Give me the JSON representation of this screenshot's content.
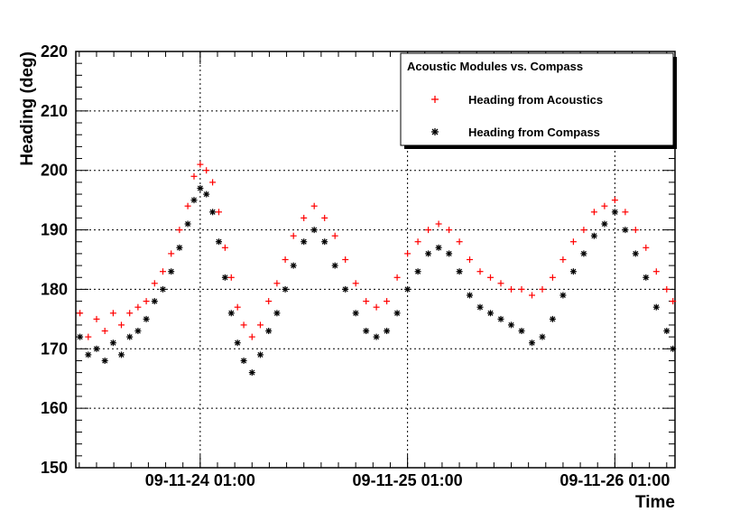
{
  "chart_data": {
    "type": "scatter",
    "title": "",
    "xlabel": "Time",
    "ylabel": "Heading (deg)",
    "ylim": [
      150,
      220
    ],
    "yticks": [
      150,
      160,
      170,
      180,
      190,
      200,
      210,
      220
    ],
    "x_range_days": [
      -0.6,
      2.29
    ],
    "xtick_labels": [
      {
        "label": "09-11-24 01:00",
        "day": 0
      },
      {
        "label": "09-11-25 01:00",
        "day": 1
      },
      {
        "label": "09-11-26 01:00",
        "day": 2
      }
    ],
    "grid": true,
    "legend": {
      "title": "Acoustic Modules vs. Compass",
      "placement": "top-right",
      "entries": [
        "Heading from Acoustics",
        "Heading from Compass"
      ]
    },
    "series": [
      {
        "name": "Heading from Acoustics",
        "marker": "+",
        "color": "#ff0000",
        "points": [
          [
            -0.58,
            176
          ],
          [
            -0.54,
            172
          ],
          [
            -0.5,
            175
          ],
          [
            -0.46,
            173
          ],
          [
            -0.42,
            176
          ],
          [
            -0.38,
            174
          ],
          [
            -0.34,
            176
          ],
          [
            -0.3,
            177
          ],
          [
            -0.26,
            178
          ],
          [
            -0.22,
            181
          ],
          [
            -0.18,
            183
          ],
          [
            -0.14,
            186
          ],
          [
            -0.1,
            190
          ],
          [
            -0.06,
            194
          ],
          [
            -0.03,
            199
          ],
          [
            0,
            201
          ],
          [
            0.03,
            200
          ],
          [
            0.06,
            198
          ],
          [
            0.09,
            193
          ],
          [
            0.12,
            187
          ],
          [
            0.15,
            182
          ],
          [
            0.18,
            177
          ],
          [
            0.21,
            174
          ],
          [
            0.25,
            172
          ],
          [
            0.29,
            174
          ],
          [
            0.33,
            178
          ],
          [
            0.37,
            181
          ],
          [
            0.41,
            185
          ],
          [
            0.45,
            189
          ],
          [
            0.5,
            192
          ],
          [
            0.55,
            194
          ],
          [
            0.6,
            192
          ],
          [
            0.65,
            189
          ],
          [
            0.7,
            185
          ],
          [
            0.75,
            181
          ],
          [
            0.8,
            178
          ],
          [
            0.85,
            177
          ],
          [
            0.9,
            178
          ],
          [
            0.95,
            182
          ],
          [
            1,
            186
          ],
          [
            1.05,
            188
          ],
          [
            1.1,
            190
          ],
          [
            1.15,
            191
          ],
          [
            1.2,
            190
          ],
          [
            1.25,
            188
          ],
          [
            1.3,
            185
          ],
          [
            1.35,
            183
          ],
          [
            1.4,
            182
          ],
          [
            1.45,
            181
          ],
          [
            1.5,
            180
          ],
          [
            1.55,
            180
          ],
          [
            1.6,
            179
          ],
          [
            1.65,
            180
          ],
          [
            1.7,
            182
          ],
          [
            1.75,
            185
          ],
          [
            1.8,
            188
          ],
          [
            1.85,
            190
          ],
          [
            1.9,
            193
          ],
          [
            1.95,
            194
          ],
          [
            2,
            195
          ],
          [
            2.05,
            193
          ],
          [
            2.1,
            190
          ],
          [
            2.15,
            187
          ],
          [
            2.2,
            183
          ],
          [
            2.25,
            180
          ],
          [
            2.28,
            178
          ]
        ]
      },
      {
        "name": "Heading from Compass",
        "marker": "*",
        "color": "#000000",
        "points": [
          [
            -0.58,
            172
          ],
          [
            -0.54,
            169
          ],
          [
            -0.5,
            170
          ],
          [
            -0.46,
            168
          ],
          [
            -0.42,
            171
          ],
          [
            -0.38,
            169
          ],
          [
            -0.34,
            172
          ],
          [
            -0.3,
            173
          ],
          [
            -0.26,
            175
          ],
          [
            -0.22,
            178
          ],
          [
            -0.18,
            180
          ],
          [
            -0.14,
            183
          ],
          [
            -0.1,
            187
          ],
          [
            -0.06,
            191
          ],
          [
            -0.03,
            195
          ],
          [
            0,
            197
          ],
          [
            0.03,
            196
          ],
          [
            0.06,
            193
          ],
          [
            0.09,
            188
          ],
          [
            0.12,
            182
          ],
          [
            0.15,
            176
          ],
          [
            0.18,
            171
          ],
          [
            0.21,
            168
          ],
          [
            0.25,
            166
          ],
          [
            0.29,
            169
          ],
          [
            0.33,
            173
          ],
          [
            0.37,
            176
          ],
          [
            0.41,
            180
          ],
          [
            0.45,
            184
          ],
          [
            0.5,
            188
          ],
          [
            0.55,
            190
          ],
          [
            0.6,
            188
          ],
          [
            0.65,
            184
          ],
          [
            0.7,
            180
          ],
          [
            0.75,
            176
          ],
          [
            0.8,
            173
          ],
          [
            0.85,
            172
          ],
          [
            0.9,
            173
          ],
          [
            0.95,
            176
          ],
          [
            1,
            180
          ],
          [
            1.05,
            183
          ],
          [
            1.1,
            186
          ],
          [
            1.15,
            187
          ],
          [
            1.2,
            186
          ],
          [
            1.25,
            183
          ],
          [
            1.3,
            179
          ],
          [
            1.35,
            177
          ],
          [
            1.4,
            176
          ],
          [
            1.45,
            175
          ],
          [
            1.5,
            174
          ],
          [
            1.55,
            173
          ],
          [
            1.6,
            171
          ],
          [
            1.65,
            172
          ],
          [
            1.7,
            175
          ],
          [
            1.75,
            179
          ],
          [
            1.8,
            183
          ],
          [
            1.85,
            186
          ],
          [
            1.9,
            189
          ],
          [
            1.95,
            191
          ],
          [
            2,
            193
          ],
          [
            2.05,
            190
          ],
          [
            2.1,
            186
          ],
          [
            2.15,
            182
          ],
          [
            2.2,
            177
          ],
          [
            2.25,
            173
          ],
          [
            2.28,
            170
          ]
        ]
      }
    ]
  }
}
